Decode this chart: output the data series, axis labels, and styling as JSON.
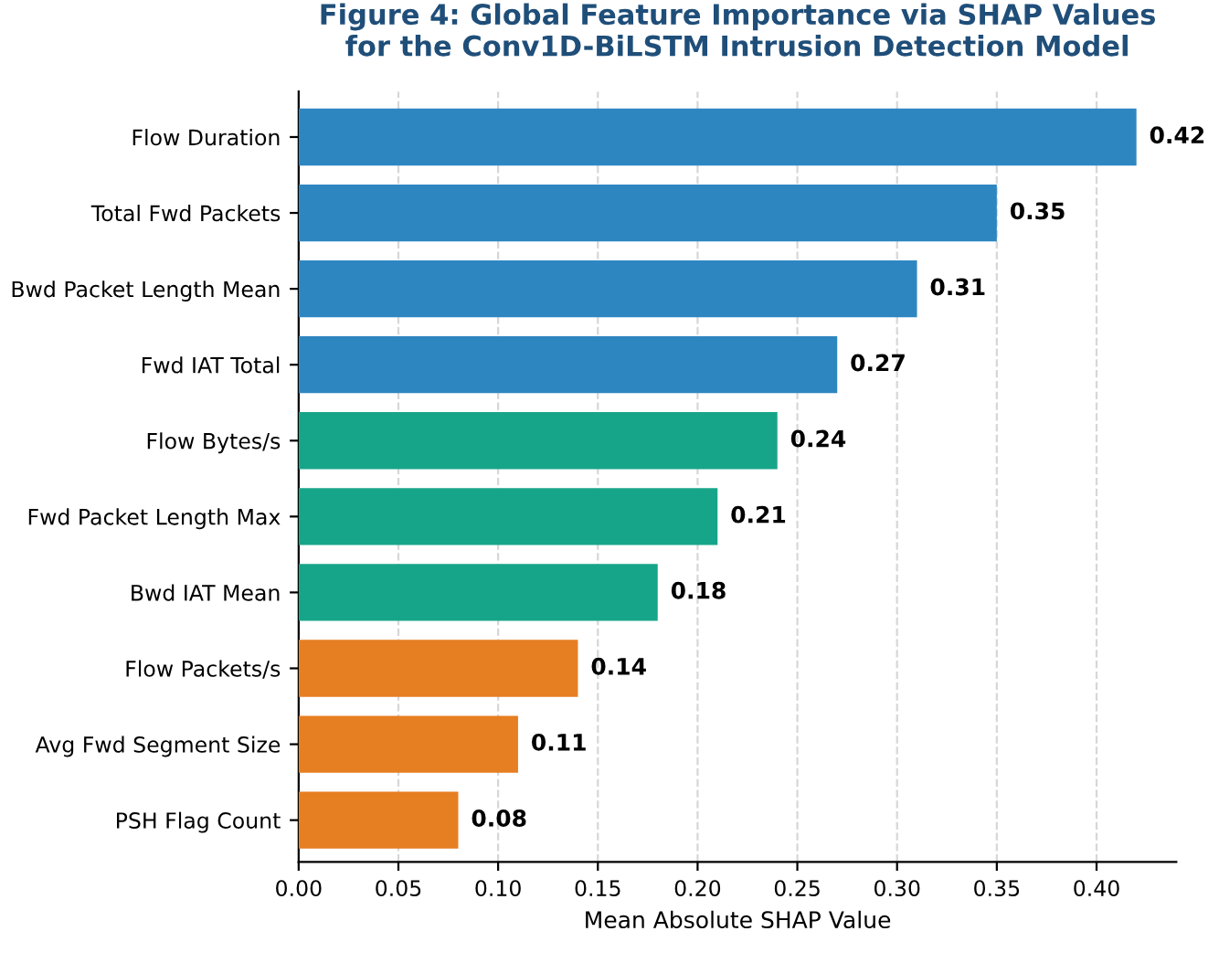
{
  "chart_data": {
    "type": "bar",
    "orientation": "horizontal",
    "title": "Figure 4: Global Feature Importance via SHAP Values\nfor the Conv1D-BiLSTM Intrusion Detection Model",
    "xlabel": "Mean Absolute SHAP Value",
    "categories": [
      "Flow Duration",
      "Total Fwd Packets",
      "Bwd Packet Length Mean",
      "Fwd IAT Total",
      "Flow Bytes/s",
      "Fwd Packet Length Max",
      "Bwd IAT Mean",
      "Flow Packets/s",
      "Avg Fwd Segment Size",
      "PSH Flag Count"
    ],
    "values": [
      0.42,
      0.35,
      0.31,
      0.27,
      0.24,
      0.21,
      0.18,
      0.14,
      0.11,
      0.08
    ],
    "colors": [
      "#2e86c1",
      "#2e86c1",
      "#2e86c1",
      "#2e86c1",
      "#17a589",
      "#17a589",
      "#17a589",
      "#e67e22",
      "#e67e22",
      "#e67e22"
    ],
    "xlim": [
      0,
      0.44
    ],
    "xticks": [
      {
        "value": 0,
        "label": "0.00"
      },
      0.05,
      {
        "value": 0.1,
        "label": "0.10"
      },
      0.15,
      {
        "value": 0.2,
        "label": "0.20"
      },
      0.25,
      {
        "value": 0.3,
        "label": "0.30"
      },
      0.35,
      {
        "value": 0.4,
        "label": "0.40"
      }
    ],
    "data_labels": true,
    "grid": "x"
  }
}
